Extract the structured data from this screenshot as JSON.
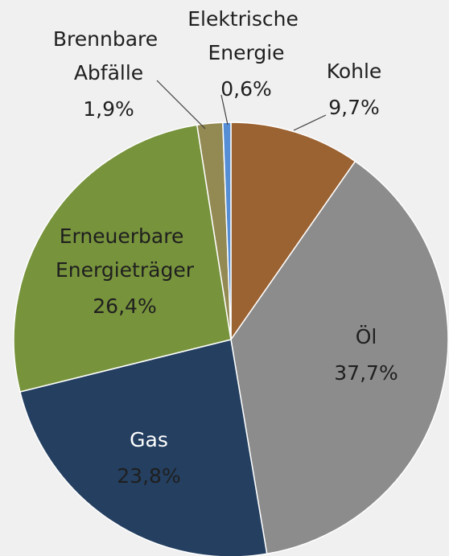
{
  "chart_data": {
    "type": "pie",
    "categories": [
      "Kohle",
      "Öl",
      "Gas",
      "Erneuerbare Energieträger",
      "Brennbare Abfälle",
      "Elektrische Energie"
    ],
    "values": [
      9.7,
      37.7,
      23.8,
      26.4,
      1.9,
      0.6
    ],
    "value_labels": [
      "9,7%",
      "37,7%",
      "23,8%",
      "26,4%",
      "1,9%",
      "0,6%"
    ],
    "colors": [
      "#9b6232",
      "#8c8c8c",
      "#243f60",
      "#77933c",
      "#938953",
      "#558ed5"
    ]
  }
}
